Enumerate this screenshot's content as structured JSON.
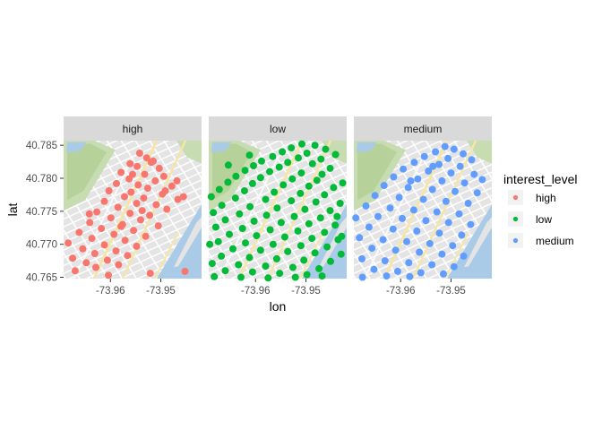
{
  "chart_data": {
    "type": "scatter",
    "facet_variable": "interest_level",
    "facets": [
      "high",
      "low",
      "medium"
    ],
    "xlabel": "lon",
    "ylabel": "lat",
    "xlim": [
      -73.9693,
      -73.9419
    ],
    "ylim": [
      40.7648,
      40.7857
    ],
    "x_ticks": [
      -73.96,
      -73.95
    ],
    "x_tick_labels": [
      "-73.96",
      "-73.95"
    ],
    "y_ticks": [
      40.765,
      40.77,
      40.775,
      40.78,
      40.785
    ],
    "y_tick_labels": [
      "40.765",
      "40.770",
      "40.775",
      "40.780",
      "40.785"
    ],
    "background": "street-map",
    "grid": false,
    "legend": {
      "title": "interest_level",
      "position": "right",
      "entries": [
        "high",
        "low",
        "medium"
      ]
    },
    "series": [
      {
        "name": "high",
        "color": "#F8766D",
        "points": [
          [
            -73.9542,
            40.7838
          ],
          [
            -73.9528,
            40.7831
          ],
          [
            -73.9515,
            40.7826
          ],
          [
            -73.9561,
            40.7822
          ],
          [
            -73.9547,
            40.7818
          ],
          [
            -73.9503,
            40.7815
          ],
          [
            -73.9579,
            40.7809
          ],
          [
            -73.9532,
            40.7806
          ],
          [
            -73.9494,
            40.7803
          ],
          [
            -73.9563,
            40.7799
          ],
          [
            -73.9511,
            40.7796
          ],
          [
            -73.9588,
            40.7792
          ],
          [
            -73.9545,
            40.779
          ],
          [
            -73.9478,
            40.7788
          ],
          [
            -73.9526,
            40.7785
          ],
          [
            -73.9603,
            40.7781
          ],
          [
            -73.9559,
            40.7779
          ],
          [
            -73.9497,
            40.7776
          ],
          [
            -73.9572,
            40.7772
          ],
          [
            -73.9534,
            40.777
          ],
          [
            -73.9466,
            40.7768
          ],
          [
            -73.9612,
            40.7765
          ],
          [
            -73.9548,
            40.7762
          ],
          [
            -73.9509,
            40.776
          ],
          [
            -73.9585,
            40.7756
          ],
          [
            -73.9488,
            40.7753
          ],
          [
            -73.9627,
            40.7749
          ],
          [
            -73.9561,
            40.7747
          ],
          [
            -73.9522,
            40.7744
          ],
          [
            -73.9599,
            40.774
          ],
          [
            -73.954,
            40.7737
          ],
          [
            -73.9641,
            40.7733
          ],
          [
            -73.9576,
            40.773
          ],
          [
            -73.9505,
            40.7728
          ],
          [
            -73.9618,
            40.7724
          ],
          [
            -73.9554,
            40.7721
          ],
          [
            -73.9662,
            40.7718
          ],
          [
            -73.9593,
            40.7715
          ],
          [
            -73.953,
            40.7712
          ],
          [
            -73.9637,
            40.7709
          ],
          [
            -73.9571,
            40.7706
          ],
          [
            -73.9684,
            40.7702
          ],
          [
            -73.9612,
            40.7699
          ],
          [
            -73.9548,
            40.7697
          ],
          [
            -73.9655,
            40.7693
          ],
          [
            -73.9589,
            40.769
          ],
          [
            -73.9631,
            40.7686
          ],
          [
            -73.9566,
            40.7683
          ],
          [
            -73.9675,
            40.7679
          ],
          [
            -73.9606,
            40.7676
          ],
          [
            -73.9648,
            40.7672
          ],
          [
            -73.9584,
            40.7669
          ],
          [
            -73.9629,
            40.7665
          ],
          [
            -73.967,
            40.766
          ],
          [
            -73.9521,
            40.7656
          ],
          [
            -73.9604,
            40.7653
          ],
          [
            -73.9452,
            40.7659
          ],
          [
            -73.9468,
            40.7796
          ],
          [
            -73.9455,
            40.7772
          ],
          [
            -73.9642,
            40.7746
          ],
          [
            -73.9537,
            40.7751
          ],
          [
            -73.9519,
            40.7824
          ],
          [
            -73.9556,
            40.7806
          ],
          [
            -73.9491,
            40.7781
          ],
          [
            -73.9579,
            40.7727
          ]
        ]
      },
      {
        "name": "low",
        "color": "#00BA38",
        "points": [
          [
            -73.9508,
            40.7852
          ],
          [
            -73.9482,
            40.785
          ],
          [
            -73.9529,
            40.7846
          ],
          [
            -73.9461,
            40.7844
          ],
          [
            -73.9547,
            40.784
          ],
          [
            -73.9498,
            40.7838
          ],
          [
            -73.9441,
            40.7836
          ],
          [
            -73.9566,
            40.7833
          ],
          [
            -73.9515,
            40.7831
          ],
          [
            -73.947,
            40.7829
          ],
          [
            -73.9588,
            40.7826
          ],
          [
            -73.9536,
            40.7824
          ],
          [
            -73.9487,
            40.7822
          ],
          [
            -73.9604,
            40.7819
          ],
          [
            -73.9553,
            40.7817
          ],
          [
            -73.9452,
            40.7815
          ],
          [
            -73.9621,
            40.7812
          ],
          [
            -73.9572,
            40.781
          ],
          [
            -73.9509,
            40.7808
          ],
          [
            -73.9468,
            40.7806
          ],
          [
            -73.9639,
            40.7803
          ],
          [
            -73.959,
            40.7801
          ],
          [
            -73.9527,
            40.7799
          ],
          [
            -73.9478,
            40.7797
          ],
          [
            -73.9655,
            40.7794
          ],
          [
            -73.9606,
            40.7792
          ],
          [
            -73.9545,
            40.779
          ],
          [
            -73.9494,
            40.7788
          ],
          [
            -73.9445,
            40.7786
          ],
          [
            -73.9672,
            40.7783
          ],
          [
            -73.9622,
            40.7781
          ],
          [
            -73.9563,
            40.7779
          ],
          [
            -73.9511,
            40.7777
          ],
          [
            -73.9463,
            40.7775
          ],
          [
            -73.9688,
            40.7772
          ],
          [
            -73.964,
            40.777
          ],
          [
            -73.958,
            40.7768
          ],
          [
            -73.9529,
            40.7766
          ],
          [
            -73.948,
            40.7764
          ],
          [
            -73.9432,
            40.7762
          ],
          [
            -73.9667,
            40.7759
          ],
          [
            -73.9611,
            40.7757
          ],
          [
            -73.9557,
            40.7755
          ],
          [
            -73.9502,
            40.7753
          ],
          [
            -73.9452,
            40.7751
          ],
          [
            -73.9684,
            40.7748
          ],
          [
            -73.9632,
            40.7746
          ],
          [
            -73.9578,
            40.7744
          ],
          [
            -73.9523,
            40.7742
          ],
          [
            -73.9471,
            40.774
          ],
          [
            -73.966,
            40.7737
          ],
          [
            -73.9603,
            40.7735
          ],
          [
            -73.9549,
            40.7733
          ],
          [
            -73.9494,
            40.7731
          ],
          [
            -73.9442,
            40.7729
          ],
          [
            -73.9679,
            40.7726
          ],
          [
            -73.9626,
            40.7724
          ],
          [
            -73.9571,
            40.7722
          ],
          [
            -73.9516,
            40.772
          ],
          [
            -73.9463,
            40.7718
          ],
          [
            -73.9652,
            40.7715
          ],
          [
            -73.9598,
            40.7713
          ],
          [
            -73.9542,
            40.7711
          ],
          [
            -73.9488,
            40.7709
          ],
          [
            -73.9436,
            40.7707
          ],
          [
            -73.9674,
            40.7704
          ],
          [
            -73.962,
            40.7702
          ],
          [
            -73.9565,
            40.77
          ],
          [
            -73.951,
            40.7698
          ],
          [
            -73.9458,
            40.7696
          ],
          [
            -73.9645,
            40.7693
          ],
          [
            -73.959,
            40.7691
          ],
          [
            -73.9536,
            40.7689
          ],
          [
            -73.9482,
            40.7687
          ],
          [
            -73.943,
            40.7685
          ],
          [
            -73.9668,
            40.7682
          ],
          [
            -73.9612,
            40.768
          ],
          [
            -73.9558,
            40.7678
          ],
          [
            -73.9504,
            40.7676
          ],
          [
            -73.9451,
            40.7674
          ],
          [
            -73.9686,
            40.7671
          ],
          [
            -73.9634,
            40.7669
          ],
          [
            -73.958,
            40.7667
          ],
          [
            -73.9526,
            40.7665
          ],
          [
            -73.9474,
            40.7663
          ],
          [
            -73.966,
            40.766
          ],
          [
            -73.9606,
            40.7658
          ],
          [
            -73.9552,
            40.7656
          ],
          [
            -73.9498,
            40.7654
          ],
          [
            -73.9682,
            40.7651
          ],
          [
            -73.9629,
            40.765
          ],
          [
            -73.9575,
            40.7649
          ],
          [
            -73.9521,
            40.765
          ],
          [
            -73.9468,
            40.7652
          ],
          [
            -73.9429,
            40.7712
          ],
          [
            -73.9612,
            40.7835
          ],
          [
            -73.9654,
            40.782
          ],
          [
            -73.9427,
            40.7793
          ],
          [
            -73.9438,
            40.7742
          ],
          [
            -73.9691,
            40.77
          ]
        ]
      },
      {
        "name": "medium",
        "color": "#619CFF",
        "points": [
          [
            -73.9512,
            40.7848
          ],
          [
            -73.9494,
            40.7844
          ],
          [
            -73.9531,
            40.784
          ],
          [
            -73.9476,
            40.7837
          ],
          [
            -73.9553,
            40.7833
          ],
          [
            -73.9506,
            40.783
          ],
          [
            -73.9459,
            40.7828
          ],
          [
            -73.9573,
            40.7824
          ],
          [
            -73.9524,
            40.7821
          ],
          [
            -73.9482,
            40.7818
          ],
          [
            -73.9595,
            40.7814
          ],
          [
            -73.9545,
            40.7811
          ],
          [
            -73.95,
            40.7808
          ],
          [
            -73.9454,
            40.7806
          ],
          [
            -73.9614,
            40.7802
          ],
          [
            -73.9566,
            40.7799
          ],
          [
            -73.9518,
            40.7796
          ],
          [
            -73.9473,
            40.7793
          ],
          [
            -73.9633,
            40.7789
          ],
          [
            -73.9585,
            40.7786
          ],
          [
            -73.9537,
            40.7783
          ],
          [
            -73.9492,
            40.778
          ],
          [
            -73.9448,
            40.7778
          ],
          [
            -73.9651,
            40.7774
          ],
          [
            -73.9603,
            40.7771
          ],
          [
            -73.9555,
            40.7768
          ],
          [
            -73.951,
            40.7765
          ],
          [
            -73.9466,
            40.7762
          ],
          [
            -73.9669,
            40.7758
          ],
          [
            -73.9621,
            40.7755
          ],
          [
            -73.9574,
            40.7752
          ],
          [
            -73.9528,
            40.7749
          ],
          [
            -73.9484,
            40.7746
          ],
          [
            -73.9645,
            40.7742
          ],
          [
            -73.9597,
            40.7739
          ],
          [
            -73.955,
            40.7736
          ],
          [
            -73.9505,
            40.7733
          ],
          [
            -73.9461,
            40.773
          ],
          [
            -73.9663,
            40.7726
          ],
          [
            -73.9615,
            40.7723
          ],
          [
            -73.9568,
            40.772
          ],
          [
            -73.9523,
            40.7717
          ],
          [
            -73.9479,
            40.7714
          ],
          [
            -73.9682,
            40.771
          ],
          [
            -73.9635,
            40.7707
          ],
          [
            -73.9588,
            40.7704
          ],
          [
            -73.9542,
            40.7701
          ],
          [
            -73.9497,
            40.7698
          ],
          [
            -73.9657,
            40.7694
          ],
          [
            -73.961,
            40.7691
          ],
          [
            -73.9563,
            40.7688
          ],
          [
            -73.9518,
            40.7685
          ],
          [
            -73.9475,
            40.7682
          ],
          [
            -73.9677,
            40.7678
          ],
          [
            -73.9631,
            40.7675
          ],
          [
            -73.9584,
            40.7672
          ],
          [
            -73.9538,
            40.7669
          ],
          [
            -73.9494,
            40.7666
          ],
          [
            -73.9653,
            40.7662
          ],
          [
            -73.9606,
            40.7659
          ],
          [
            -73.956,
            40.7657
          ],
          [
            -73.9515,
            40.7655
          ],
          [
            -73.9628,
            40.7652
          ],
          [
            -73.9676,
            40.765
          ],
          [
            -73.9582,
            40.7651
          ],
          [
            -73.9438,
            40.7798
          ],
          [
            -73.9689,
            40.774
          ],
          [
            -73.9536,
            40.7818
          ],
          [
            -73.958,
            40.7796
          ]
        ]
      }
    ]
  }
}
